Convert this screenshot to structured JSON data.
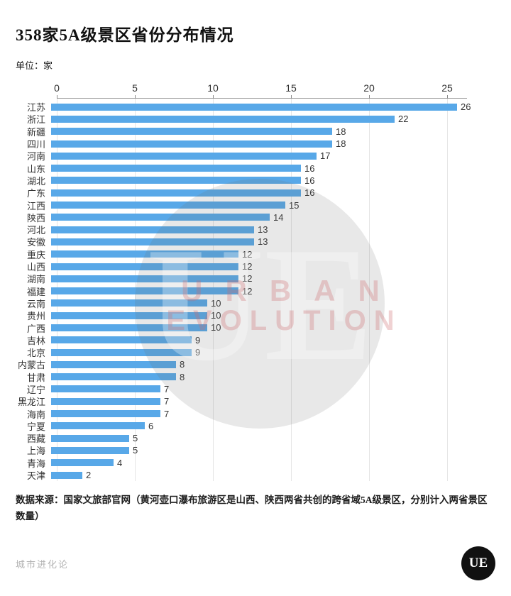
{
  "title": "358家5A级景区省份分布情况",
  "unit_label": "单位：家",
  "chart_data": {
    "type": "bar",
    "orientation": "horizontal",
    "title": "358家5A级景区省份分布情况",
    "unit": "家",
    "bar_color": "#58a8e8",
    "x_ticks": [
      0,
      5,
      10,
      15,
      20,
      25
    ],
    "xlim": [
      0,
      26.5
    ],
    "grid": true,
    "categories": [
      "江苏",
      "浙江",
      "新疆",
      "四川",
      "河南",
      "山东",
      "湖北",
      "广东",
      "江西",
      "陕西",
      "河北",
      "安徽",
      "重庆",
      "山西",
      "湖南",
      "福建",
      "云南",
      "贵州",
      "广西",
      "吉林",
      "北京",
      "内蒙古",
      "甘肃",
      "辽宁",
      "黑龙江",
      "海南",
      "宁夏",
      "西藏",
      "上海",
      "青海",
      "天津"
    ],
    "values": [
      26,
      22,
      18,
      18,
      17,
      16,
      16,
      16,
      15,
      14,
      13,
      13,
      12,
      12,
      12,
      12,
      10,
      10,
      10,
      9,
      9,
      8,
      8,
      7,
      7,
      7,
      6,
      5,
      5,
      4,
      2
    ]
  },
  "footer_note": "数据来源：国家文旅部官网（黄河壶口瀑布旅游区是山西、陕西两省共创的跨省域5A级景区，分别计入两省景区数量）",
  "footer": {
    "brand": "城市进化论",
    "logo_text": "UE"
  },
  "watermark": {
    "circle_text": "UE",
    "line1": "URBAN",
    "line2": "EVOLUTION"
  }
}
